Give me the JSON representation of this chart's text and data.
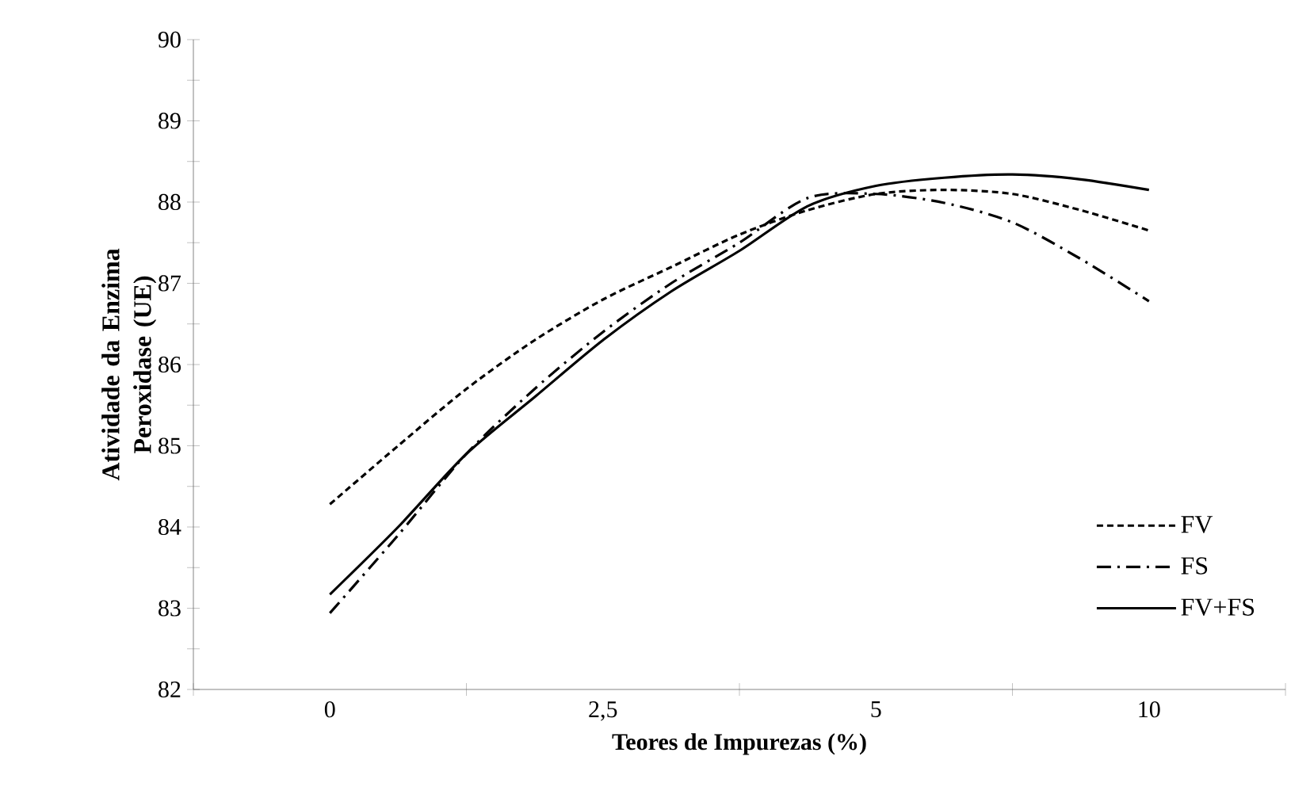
{
  "chart_data": {
    "type": "line",
    "xlabel": "Teores de Impurezas  (%)",
    "ylabel": "Atividade da Enzima Peroxidase (UE)",
    "categories": [
      "0",
      null,
      null,
      null,
      "2,5",
      null,
      null,
      null,
      "5",
      null,
      null,
      null,
      "10"
    ],
    "ylim": [
      82,
      90
    ],
    "yticks": [
      82,
      83,
      84,
      85,
      86,
      87,
      88,
      89,
      90
    ],
    "legend": "bottom right",
    "series": [
      {
        "name": "FV",
        "color": "#000000",
        "line_style": "dashed",
        "values": [
          84.28,
          85.0,
          85.7,
          86.3,
          86.8,
          87.2,
          87.6,
          87.9,
          88.1,
          88.15,
          88.1,
          87.9,
          87.65
        ]
      },
      {
        "name": "FS",
        "color": "#000000",
        "line_style": "dashdot",
        "values": [
          82.94,
          83.9,
          84.9,
          85.7,
          86.4,
          87.0,
          87.5,
          88.05,
          88.1,
          87.99,
          87.75,
          87.3,
          86.78
        ]
      },
      {
        "name": "FV+FS",
        "color": "#000000",
        "line_style": "solid",
        "values": [
          83.17,
          84.0,
          84.9,
          85.6,
          86.3,
          86.9,
          87.4,
          87.95,
          88.2,
          88.3,
          88.34,
          88.28,
          88.15
        ]
      }
    ]
  }
}
